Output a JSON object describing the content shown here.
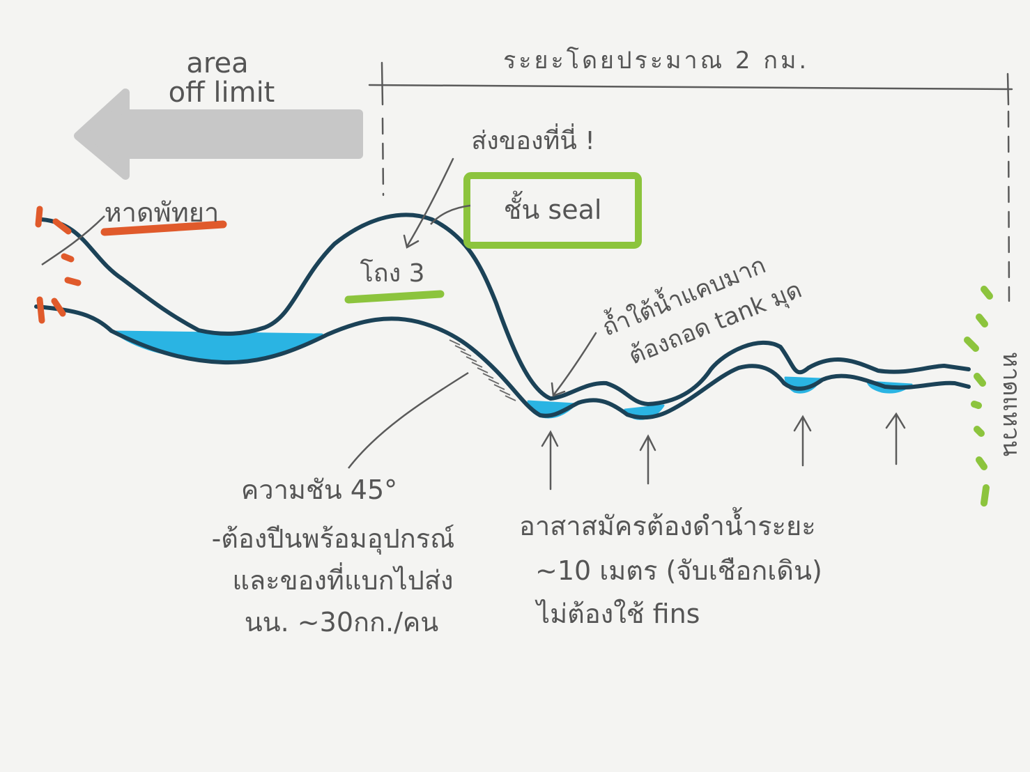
{
  "distance_label": "ระยะโดยประมาณ 2 กม.",
  "arrow_label_1": "area",
  "arrow_label_2": "off limit",
  "left_beach": "หาดพัทยา",
  "send_here": "ส่งของที่นี่ !",
  "seal_box": "ชั้น seal",
  "cave_label": "โถง 3",
  "underwater_1": "ถ้ำใต้น้ำแคบมาก",
  "underwater_2": "ต้องถอด tank มุด",
  "right_beach": "หาดแหวน",
  "slope_notes": [
    "ความชัน 45°",
    "-ต้องปีนพร้อมอุปกรณ์",
    "และของที่แบกไปส่ง",
    "นน. ~30กก./คน"
  ],
  "volunteer_notes": [
    "อาสาสมัครต้องดำน้ำระยะ",
    "~10 เมตร (จับเชือกเดิน)",
    "ไม่ต้องใช้ fins"
  ],
  "colors": {
    "cave_line": "#1b4257",
    "water": "#2ab4e3",
    "arrow_gray": "#c7c7c7",
    "orange": "#e05a2b",
    "green": "#8cc43d",
    "ink": "#5a5a5a"
  }
}
